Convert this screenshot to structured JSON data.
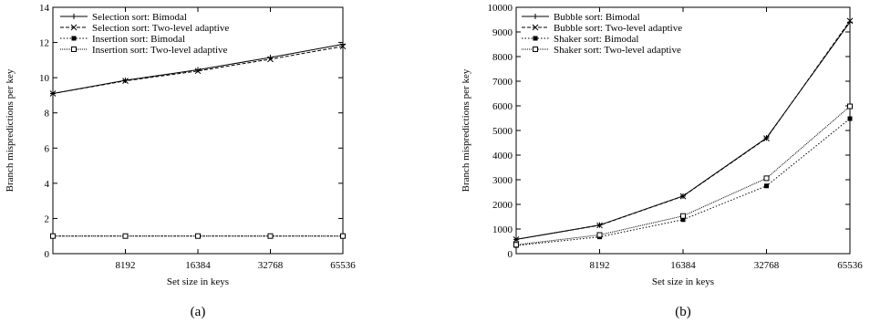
{
  "chart_data": [
    {
      "type": "line",
      "caption": "(a)",
      "xlabel": "Set size in keys",
      "ylabel": "Branch mispredictions per key",
      "x": [
        4096,
        8192,
        16384,
        32768,
        65536
      ],
      "x_ticks": [
        8192,
        16384,
        32768,
        65536
      ],
      "x_tick_labels": [
        "8192",
        "16384",
        "32768",
        "65536"
      ],
      "x_scale": "log2",
      "xlim": [
        4096,
        65536
      ],
      "ylim": [
        0,
        14
      ],
      "y_ticks": [
        0,
        2,
        4,
        6,
        8,
        10,
        12,
        14
      ],
      "y_tick_labels": [
        "0",
        "2",
        "4",
        "6",
        "8",
        "10",
        "12",
        "14"
      ],
      "grid": false,
      "legend_position": "top-left",
      "series": [
        {
          "name": "Selection sort: Bimodal",
          "values": [
            9.1,
            9.85,
            10.45,
            11.15,
            11.9
          ],
          "line_style": "solid",
          "marker": "plus"
        },
        {
          "name": "Selection sort: Two-level adaptive",
          "values": [
            9.1,
            9.82,
            10.38,
            11.05,
            11.78
          ],
          "line_style": "dashed",
          "marker": "x"
        },
        {
          "name": "Insertion sort: Bimodal",
          "values": [
            1.0,
            1.0,
            1.0,
            1.0,
            1.0
          ],
          "line_style": "dotted",
          "marker": "filled-square"
        },
        {
          "name": "Insertion sort: Two-level adaptive",
          "values": [
            1.0,
            1.0,
            1.0,
            1.0,
            1.0
          ],
          "line_style": "dense-dotted",
          "marker": "open-square"
        }
      ]
    },
    {
      "type": "line",
      "caption": "(b)",
      "xlabel": "Set size in keys",
      "ylabel": "Branch mispredictions per key",
      "x": [
        4096,
        8192,
        16384,
        32768,
        65536
      ],
      "x_ticks": [
        8192,
        16384,
        32768,
        65536
      ],
      "x_tick_labels": [
        "8192",
        "16384",
        "32768",
        "65536"
      ],
      "x_scale": "log2",
      "xlim": [
        4096,
        65536
      ],
      "ylim": [
        0,
        10000
      ],
      "y_ticks": [
        0,
        1000,
        2000,
        3000,
        4000,
        5000,
        6000,
        7000,
        8000,
        9000,
        10000
      ],
      "y_tick_labels": [
        "0",
        "1000",
        "2000",
        "3000",
        "4000",
        "5000",
        "6000",
        "7000",
        "8000",
        "9000",
        "10000"
      ],
      "grid": false,
      "legend_position": "top-left",
      "series": [
        {
          "name": "Bubble sort: Bimodal",
          "values": [
            580,
            1160,
            2340,
            4700,
            9400
          ],
          "line_style": "solid",
          "marker": "plus"
        },
        {
          "name": "Bubble sort: Two-level adaptive",
          "values": [
            580,
            1150,
            2330,
            4680,
            9450
          ],
          "line_style": "dashed",
          "marker": "x"
        },
        {
          "name": "Shaker sort: Bimodal",
          "values": [
            330,
            680,
            1380,
            2750,
            5480
          ],
          "line_style": "dotted",
          "marker": "filled-square"
        },
        {
          "name": "Shaker sort: Two-level adaptive",
          "values": [
            360,
            760,
            1530,
            3060,
            5980
          ],
          "line_style": "dense-dotted",
          "marker": "open-square"
        }
      ]
    }
  ]
}
